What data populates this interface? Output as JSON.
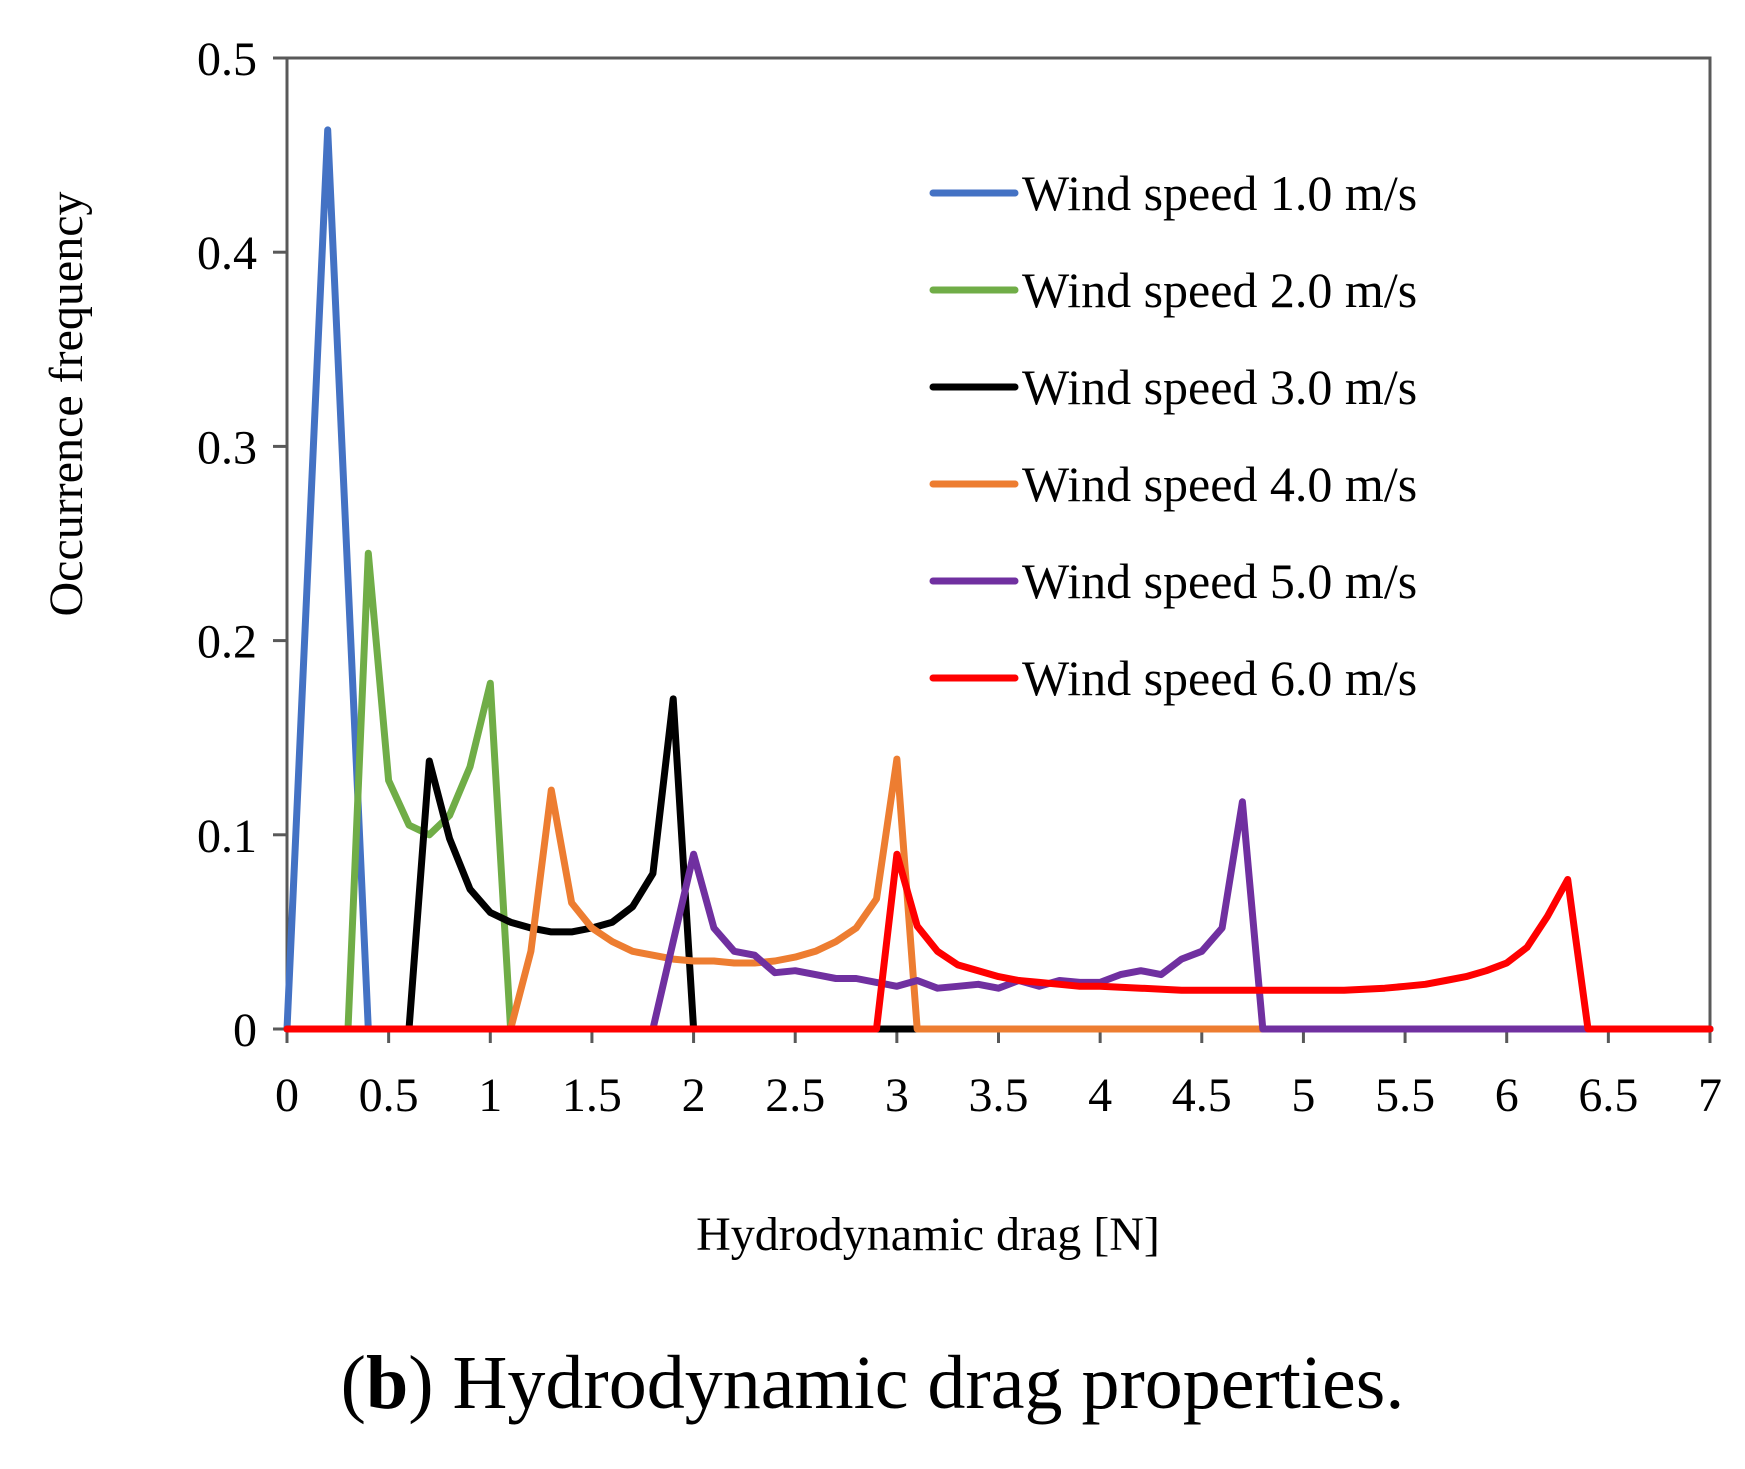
{
  "chart_data": {
    "type": "line",
    "xlabel": "Hydrodynamic drag  [N]",
    "ylabel": "Occurrence frequency",
    "xlim": [
      0,
      7
    ],
    "ylim": [
      0,
      0.5
    ],
    "x_ticks": [
      "0",
      "0.5",
      "1",
      "1.5",
      "2",
      "2.5",
      "3",
      "3.5",
      "4",
      "4.5",
      "5",
      "5.5",
      "6",
      "6.5",
      "7"
    ],
    "y_ticks": [
      "0",
      "0.1",
      "0.2",
      "0.3",
      "0.4",
      "0.5"
    ],
    "grid": false,
    "legend_position": "top-right",
    "series": [
      {
        "name": "Wind speed 1.0 m/s",
        "color": "#4472C4",
        "x": [
          0,
          0.2,
          0.4,
          0.5,
          7
        ],
        "y": [
          0,
          0.463,
          0,
          0,
          0
        ]
      },
      {
        "name": "Wind speed 2.0 m/s",
        "color": "#70AD47",
        "x": [
          0,
          0.3,
          0.4,
          0.5,
          0.6,
          0.7,
          0.8,
          0.9,
          1.0,
          1.1,
          1.2,
          7
        ],
        "y": [
          0,
          0,
          0.245,
          0.128,
          0.105,
          0.1,
          0.11,
          0.135,
          0.178,
          0,
          0,
          0
        ]
      },
      {
        "name": "Wind speed 3.0 m/s",
        "color": "#000000",
        "x": [
          0,
          0.6,
          0.7,
          0.8,
          0.9,
          1.0,
          1.1,
          1.2,
          1.3,
          1.4,
          1.5,
          1.6,
          1.7,
          1.8,
          1.9,
          2.0,
          2.1,
          7
        ],
        "y": [
          0,
          0,
          0.138,
          0.098,
          0.072,
          0.06,
          0.055,
          0.052,
          0.05,
          0.05,
          0.052,
          0.055,
          0.063,
          0.08,
          0.17,
          0,
          0,
          0
        ]
      },
      {
        "name": "Wind speed 4.0 m/s",
        "color": "#ED7D31",
        "x": [
          0,
          1.1,
          1.2,
          1.3,
          1.4,
          1.5,
          1.6,
          1.7,
          1.8,
          1.9,
          2.0,
          2.1,
          2.2,
          2.3,
          2.4,
          2.5,
          2.6,
          2.7,
          2.8,
          2.9,
          3.0,
          3.1,
          3.2,
          7
        ],
        "y": [
          0,
          0,
          0.04,
          0.123,
          0.065,
          0.052,
          0.045,
          0.04,
          0.038,
          0.036,
          0.035,
          0.035,
          0.034,
          0.034,
          0.035,
          0.037,
          0.04,
          0.045,
          0.052,
          0.067,
          0.139,
          0,
          0,
          0
        ]
      },
      {
        "name": "Wind speed 5.0 m/s",
        "color": "#7030A0",
        "x": [
          0,
          1.8,
          1.9,
          2.0,
          2.1,
          2.2,
          2.3,
          2.4,
          2.5,
          2.6,
          2.7,
          2.8,
          2.9,
          3.0,
          3.1,
          3.2,
          3.3,
          3.4,
          3.5,
          3.6,
          3.7,
          3.8,
          3.9,
          4.0,
          4.1,
          4.2,
          4.3,
          4.4,
          4.5,
          4.6,
          4.7,
          4.8,
          4.9,
          7
        ],
        "y": [
          0,
          0,
          0.045,
          0.09,
          0.052,
          0.04,
          0.038,
          0.029,
          0.03,
          0.028,
          0.026,
          0.026,
          0.024,
          0.022,
          0.025,
          0.021,
          0.022,
          0.023,
          0.021,
          0.025,
          0.022,
          0.025,
          0.024,
          0.024,
          0.028,
          0.03,
          0.028,
          0.036,
          0.04,
          0.052,
          0.117,
          0,
          0,
          0
        ]
      },
      {
        "name": "Wind speed 6.0 m/s",
        "color": "#FF0000",
        "x": [
          0,
          2.9,
          3.0,
          3.1,
          3.2,
          3.3,
          3.4,
          3.5,
          3.6,
          3.7,
          3.8,
          3.9,
          4.0,
          4.2,
          4.4,
          4.6,
          4.8,
          5.0,
          5.2,
          5.4,
          5.5,
          5.6,
          5.7,
          5.8,
          5.9,
          6.0,
          6.1,
          6.2,
          6.3,
          6.4,
          6.5,
          7
        ],
        "y": [
          0,
          0,
          0.09,
          0.053,
          0.04,
          0.033,
          0.03,
          0.027,
          0.025,
          0.024,
          0.023,
          0.022,
          0.022,
          0.021,
          0.02,
          0.02,
          0.02,
          0.02,
          0.02,
          0.021,
          0.022,
          0.023,
          0.025,
          0.027,
          0.03,
          0.034,
          0.042,
          0.058,
          0.077,
          0,
          0,
          0
        ]
      }
    ]
  },
  "caption": {
    "label": "(b)",
    "label_bold_letter": "b",
    "text": " Hydrodynamic drag properties."
  }
}
